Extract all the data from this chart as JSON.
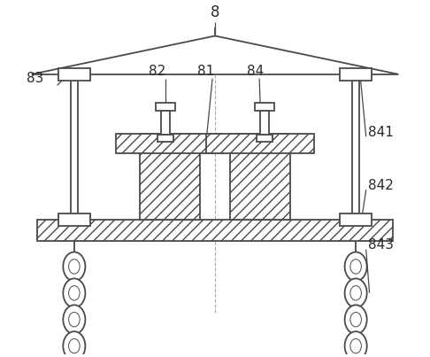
{
  "bg_color": "#ffffff",
  "line_color": "#4a4a4a",
  "fig_width": 4.86,
  "fig_height": 4.03,
  "dpi": 100,
  "label_fs": 11,
  "label_color": "#2a2a2a"
}
